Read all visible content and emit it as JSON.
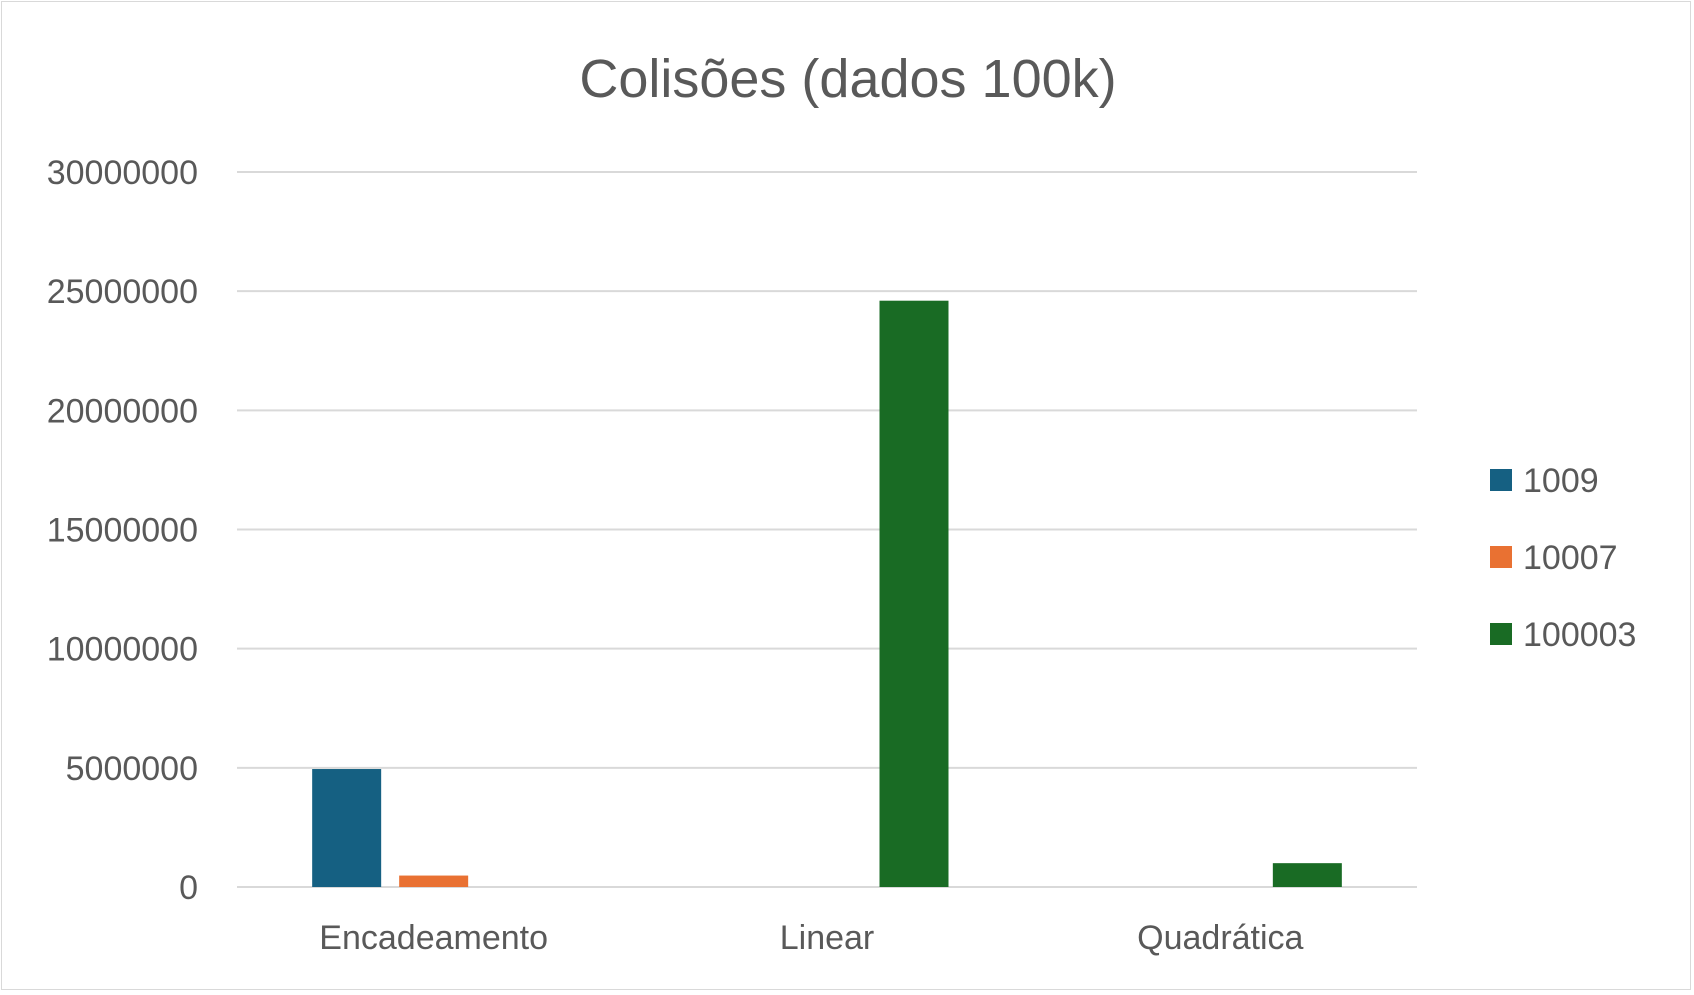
{
  "chart_data": {
    "type": "bar",
    "title": "Colisões (dados 100k)",
    "xlabel": "",
    "ylabel": "",
    "categories": [
      "Encadeamento",
      "Linear",
      "Quadrática"
    ],
    "series": [
      {
        "name": "1009",
        "color": "#156082",
        "values": [
          4950000,
          0,
          0
        ]
      },
      {
        "name": "10007",
        "color": "#e97132",
        "values": [
          480000,
          0,
          0
        ]
      },
      {
        "name": "100003",
        "color": "#196b24",
        "values": [
          0,
          24600000,
          1000000
        ]
      }
    ],
    "ylim": [
      0,
      30000000
    ],
    "yticks": [
      "0",
      "5000000",
      "10000000",
      "15000000",
      "20000000",
      "25000000",
      "30000000"
    ],
    "grid": true,
    "legend_position": "right"
  }
}
